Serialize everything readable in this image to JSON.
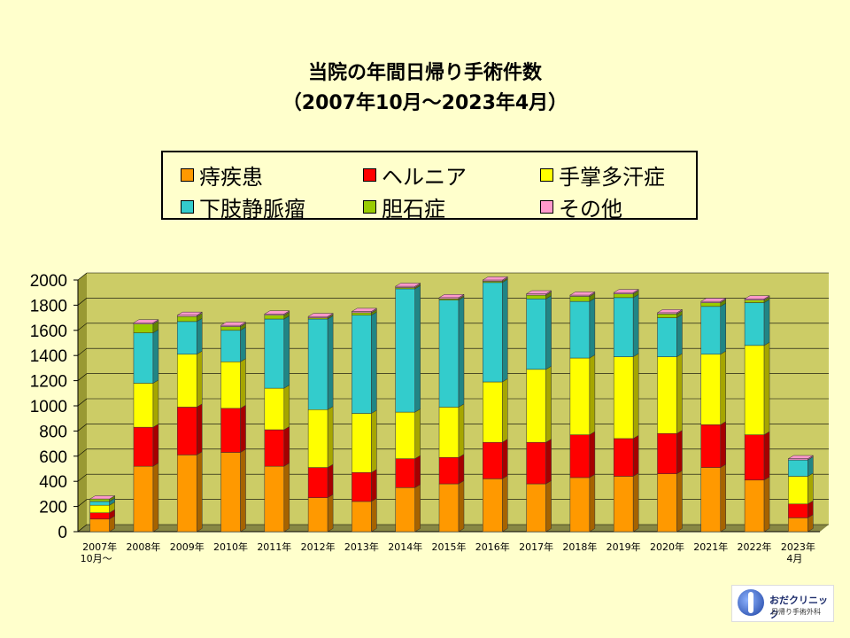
{
  "title_line1": "当院の年間日帰り手術件数",
  "title_line2": "（2007年10月～2023年4月）",
  "logo": {
    "name": "おだクリニック",
    "subtitle": "日帰り手術外科"
  },
  "chart_data": {
    "type": "bar",
    "stacked": true,
    "categories": [
      "2007年\n10月～",
      "2008年",
      "2009年",
      "2010年",
      "2011年",
      "2012年",
      "2013年",
      "2014年",
      "2015年",
      "2016年",
      "2017年",
      "2018年",
      "2019年",
      "2020年",
      "2021年",
      "2022年",
      "2023年\n4月"
    ],
    "series": [
      {
        "name": "痔疾患",
        "color": "#FF9900",
        "values": [
          100,
          520,
          610,
          630,
          520,
          270,
          240,
          350,
          380,
          420,
          380,
          430,
          440,
          460,
          510,
          410,
          110
        ]
      },
      {
        "name": "ヘルニア",
        "color": "#FF0000",
        "values": [
          50,
          310,
          380,
          350,
          290,
          240,
          230,
          230,
          210,
          290,
          330,
          340,
          300,
          320,
          340,
          360,
          110
        ]
      },
      {
        "name": "手掌多汗症",
        "color": "#FFFF00",
        "values": [
          60,
          350,
          420,
          370,
          330,
          460,
          470,
          370,
          400,
          480,
          580,
          610,
          650,
          610,
          560,
          710,
          220
        ]
      },
      {
        "name": "下肢静脈瘤",
        "color": "#33CCCC",
        "values": [
          30,
          400,
          260,
          250,
          550,
          720,
          780,
          980,
          850,
          790,
          560,
          450,
          470,
          310,
          380,
          340,
          130
        ]
      },
      {
        "name": "胆石症",
        "color": "#99CC00",
        "values": [
          20,
          70,
          40,
          30,
          30,
          10,
          20,
          10,
          10,
          10,
          30,
          40,
          30,
          30,
          30,
          20,
          0
        ]
      },
      {
        "name": "その他",
        "color": "#FF99CC",
        "values": [
          0,
          10,
          10,
          10,
          10,
          10,
          10,
          10,
          10,
          10,
          10,
          10,
          10,
          10,
          10,
          10,
          10
        ]
      }
    ],
    "ylim": [
      0,
      2000
    ],
    "yticks": [
      0,
      200,
      400,
      600,
      800,
      1000,
      1200,
      1400,
      1600,
      1800,
      2000
    ],
    "grid": true,
    "legend_position": "top"
  }
}
